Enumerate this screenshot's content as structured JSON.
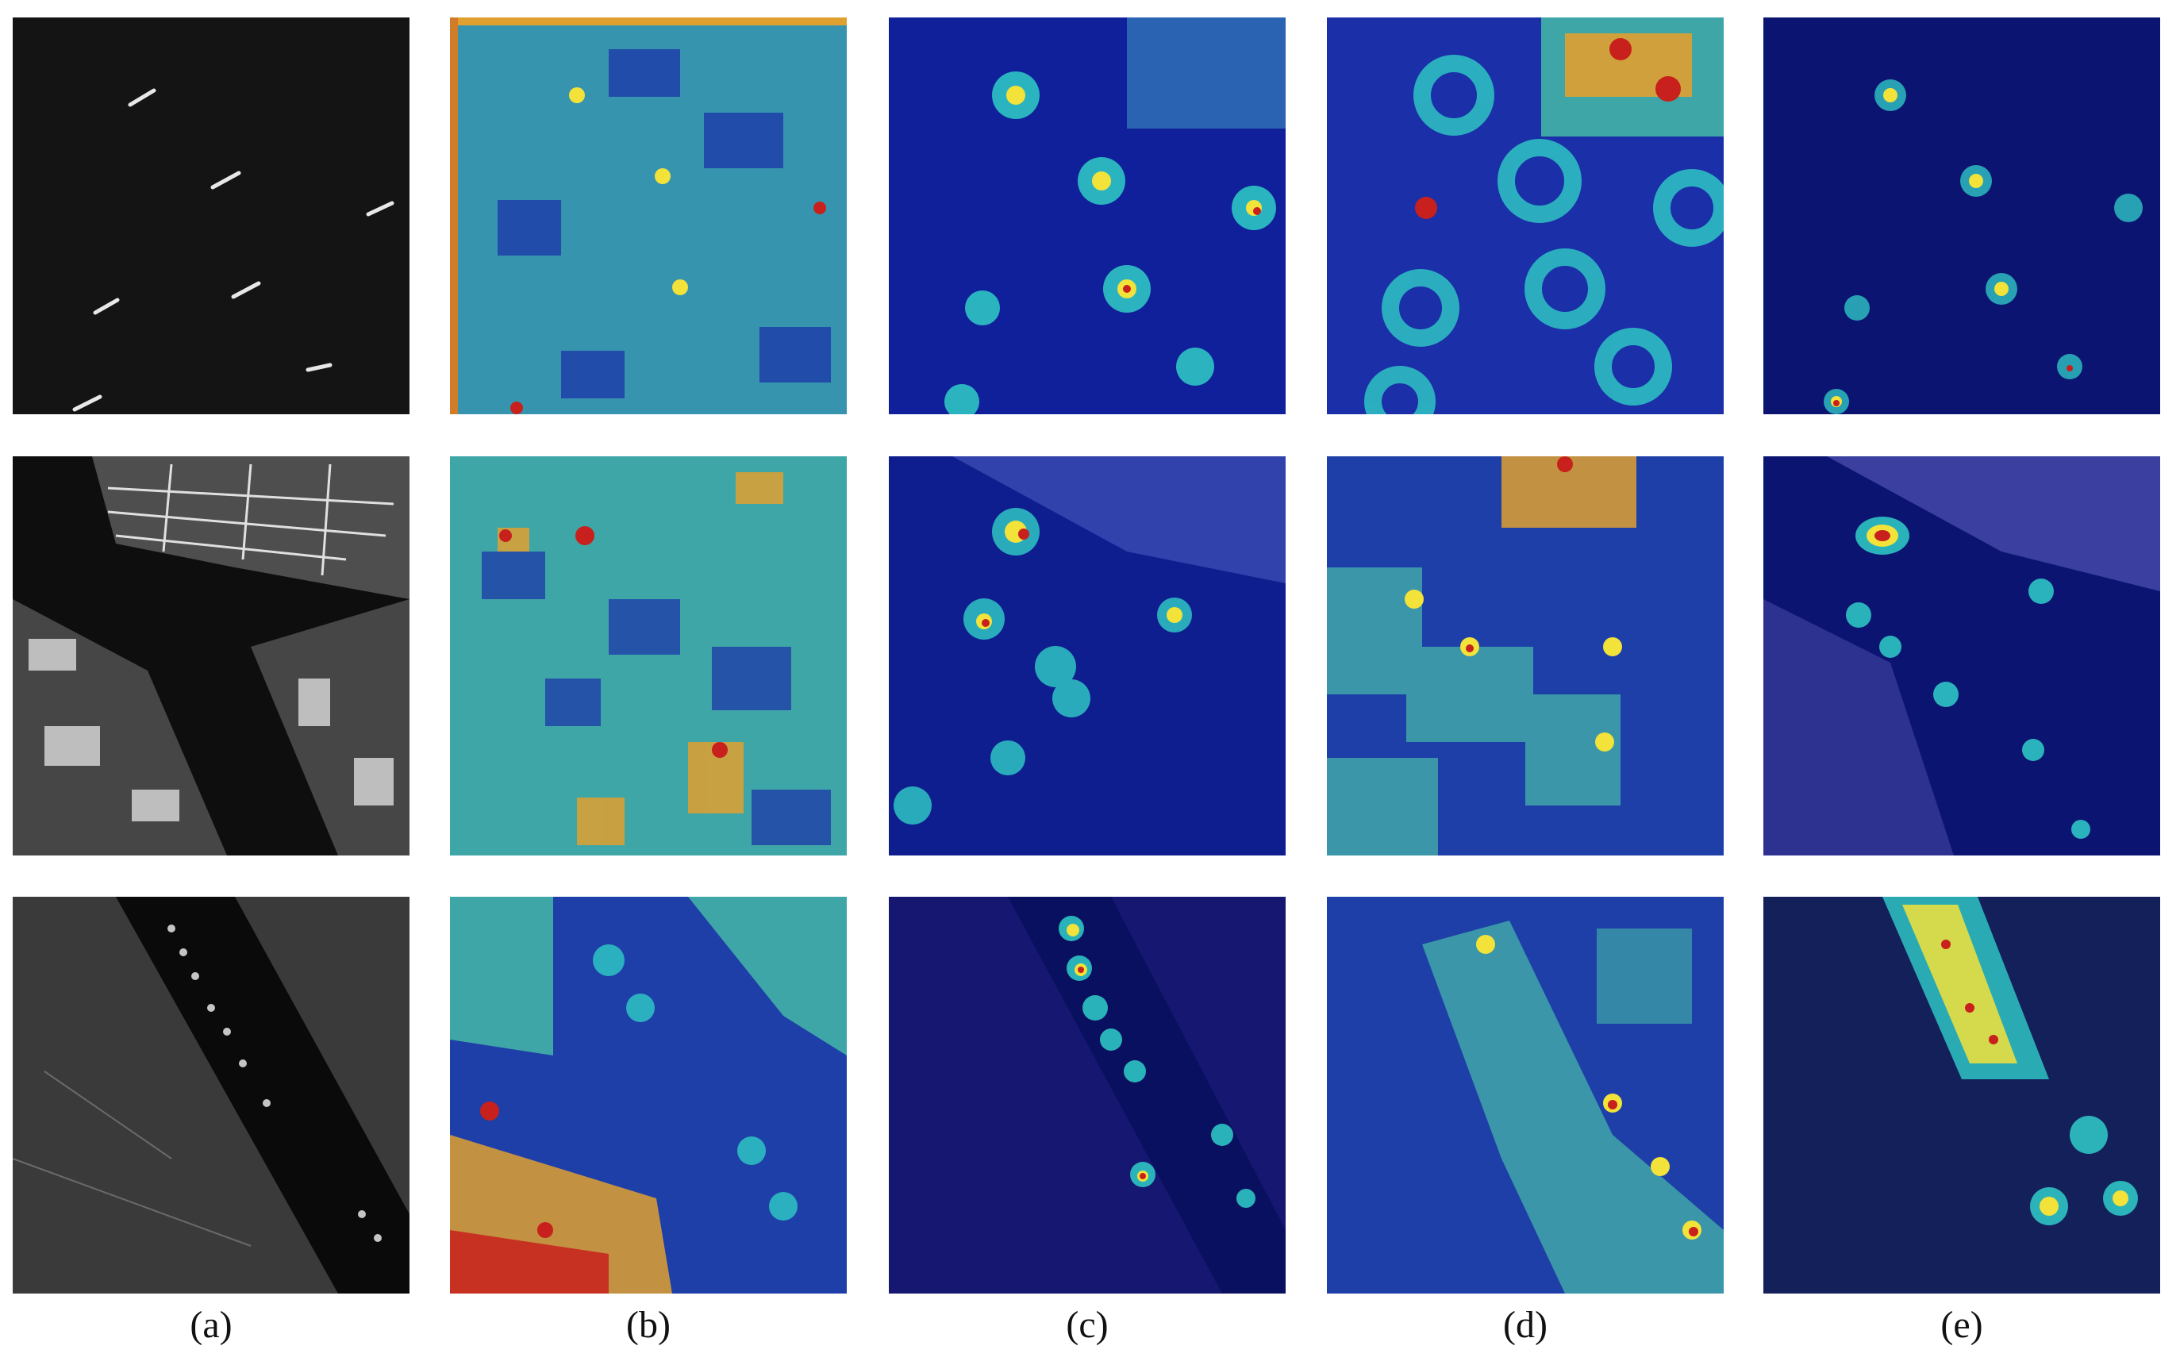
{
  "columns": [
    {
      "label": "(a)"
    },
    {
      "label": "(b)"
    },
    {
      "label": "(c)"
    },
    {
      "label": "(d)"
    },
    {
      "label": "(e)"
    }
  ],
  "rows": [
    {
      "scene": "ships-open-sea"
    },
    {
      "scene": "harbor-port"
    },
    {
      "scene": "river-with-ships"
    }
  ],
  "colors": {
    "sar_background_dark": "#111111",
    "heatmap_blue": "#0b1b8f",
    "heatmap_cyan": "#2ec4c4",
    "heatmap_yellow": "#f2e23a",
    "heatmap_red": "#c8201c",
    "label_text": "#111111"
  }
}
